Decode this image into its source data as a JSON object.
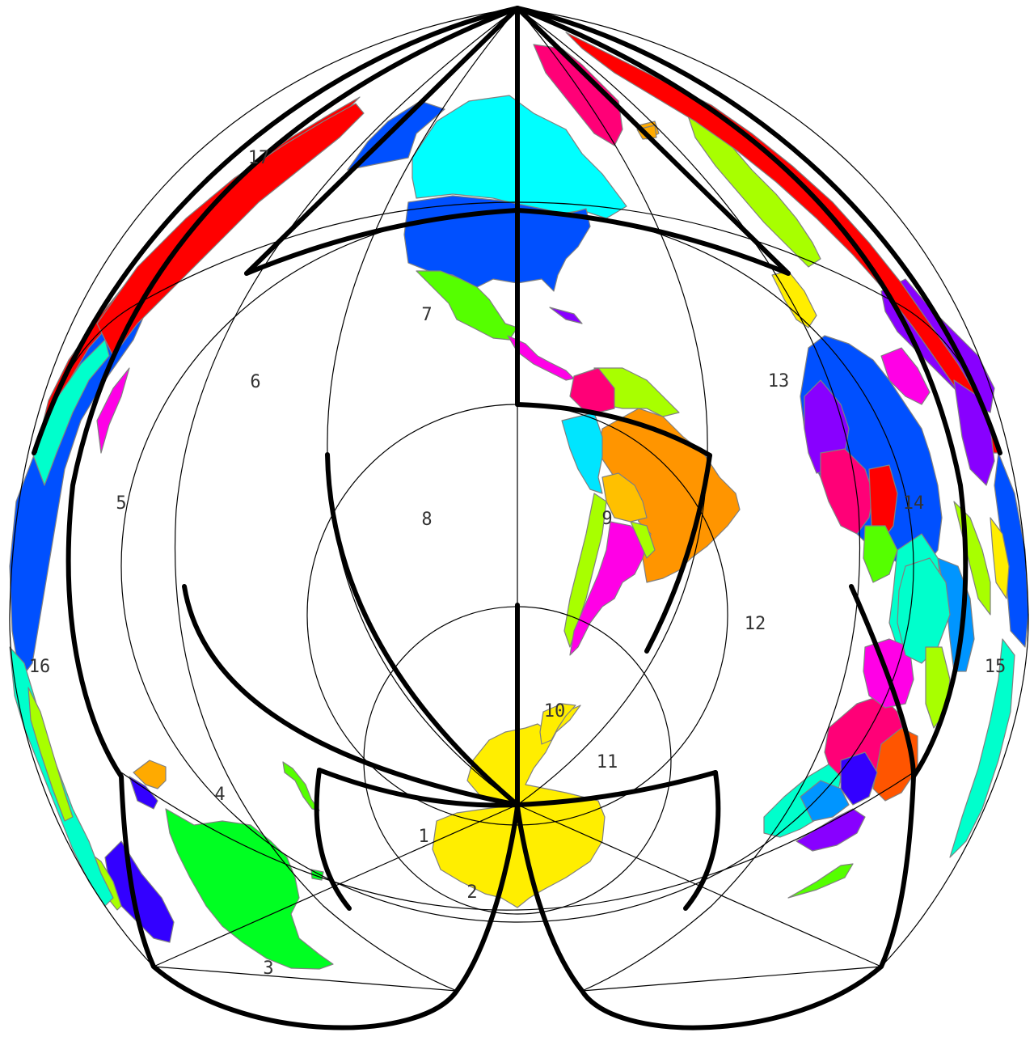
{
  "map": {
    "zone_labels": [
      "1",
      "2",
      "3",
      "4",
      "5",
      "6",
      "7",
      "8",
      "9",
      "10",
      "11",
      "12",
      "13",
      "14",
      "15",
      "16",
      "17"
    ],
    "colors": {
      "yellow": "#ffee00",
      "green": "#00ff22",
      "blue": "#0050ff",
      "cyan": "#00ffff",
      "red": "#ff0000",
      "magenta": "#ff00e6",
      "orange": "#ff9500",
      "gold": "#ffc000",
      "lime": "#a8ff00",
      "teal": "#00ffcc",
      "purple": "#8800ff",
      "pink": "#ff0077",
      "sky": "#0095ff",
      "violet": "#3300ff",
      "brightgreen": "#55ff00"
    }
  }
}
